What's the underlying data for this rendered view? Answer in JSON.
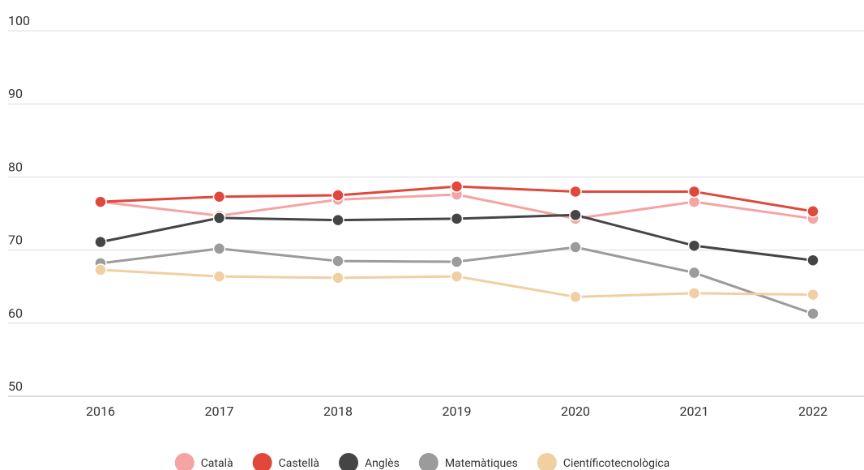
{
  "chart_data": {
    "type": "line",
    "categories": [
      "2016",
      "2017",
      "2018",
      "2019",
      "2020",
      "2021",
      "2022"
    ],
    "series": [
      {
        "name": "Català",
        "color": "#f5a3a3",
        "values": [
          76.6,
          74.7,
          76.9,
          77.6,
          74.3,
          76.6,
          74.3
        ]
      },
      {
        "name": "Castellà",
        "color": "#e0483c",
        "values": [
          76.6,
          77.3,
          77.5,
          78.7,
          78.0,
          78.0,
          75.3
        ]
      },
      {
        "name": "Anglès",
        "color": "#454545",
        "values": [
          71.1,
          74.4,
          74.1,
          74.3,
          74.8,
          70.6,
          68.6
        ]
      },
      {
        "name": "Matemàtiques",
        "color": "#9b9b9b",
        "values": [
          68.2,
          70.2,
          68.5,
          68.4,
          70.4,
          66.9,
          61.3
        ]
      },
      {
        "name": "Científicotecnològica",
        "color": "#f0cfa2",
        "values": [
          67.3,
          66.4,
          66.2,
          66.4,
          63.6,
          64.1,
          63.9
        ]
      }
    ],
    "ylim": [
      50,
      100
    ],
    "yticks": [
      50,
      60,
      70,
      80,
      90,
      100
    ],
    "grid": true,
    "legend": "bottom"
  }
}
